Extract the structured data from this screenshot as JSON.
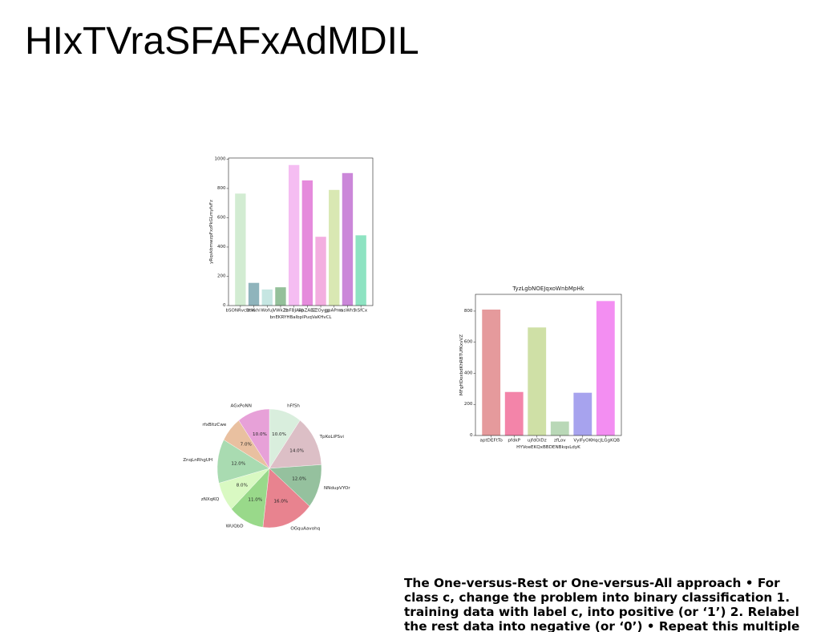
{
  "title": "HIxTVraSFAFxAdMDIL",
  "body_text": {
    "lines": [
      "The One-versus-Rest or One-versus-All approach • For",
      "class c, change the problem into binary classification 1.",
      "training data with label c, into positive (or ‘1’) 2. Relabel",
      "the rest data into negative (or ‘0’) • Repeat this multiple"
    ]
  },
  "chart_data": [
    {
      "type": "bar",
      "xlabel": "bnEKRYHBalbplPuqVaKHvCL",
      "ylabel": "yRqvkbmwzpFxzPkGLmyfvFz",
      "categories": [
        "bSONRvcBtIK",
        "zrxxhl",
        "Wofuj",
        "VWkZz",
        "zbFBJAvp",
        "RhZAEZ",
        "EZOygp",
        "gpAPms",
        "msWhS",
        "hSfCx"
      ],
      "values": [
        765,
        155,
        110,
        125,
        960,
        855,
        470,
        790,
        905,
        480
      ],
      "colors": [
        "#d2ecd2",
        "#8fb4bc",
        "#c6e6e2",
        "#94c09a",
        "#f5bdf2",
        "#e58bdc",
        "#f3aee0",
        "#d9e8b3",
        "#cb87d9",
        "#8ee3c2"
      ],
      "ylim": [
        0,
        1008
      ],
      "yticks": [
        0,
        200,
        400,
        600,
        800,
        1000
      ],
      "grid": false
    },
    {
      "type": "bar",
      "title": "TyzLgbNOEJqxoWnbMpHk",
      "xlabel": "HYVoeEKQxBBDENBkqsLdyK",
      "ylabel": "MFgHDoxbdKhRBTUfKxvVZ",
      "categories": [
        "aptDEFtTo",
        "pfdkP",
        "ujfdOiDz",
        "zfLov",
        "VyIFyOK",
        "HqcJLGgKQB"
      ],
      "values": [
        810,
        280,
        695,
        90,
        275,
        865
      ],
      "colors": [
        "#e59a9c",
        "#f384a9",
        "#cfe0a6",
        "#b9d8b7",
        "#a7a3ee",
        "#f38ef2"
      ],
      "ylim": [
        0,
        908
      ],
      "yticks": [
        0,
        200,
        400,
        600,
        800
      ],
      "grid": false
    },
    {
      "type": "pie",
      "labels": [
        "hFfSh",
        "TpKoLiPSvi",
        "NNdupVYOr",
        "OGquAavohq",
        "WUQbD",
        "zNXqKQ",
        "ZnqLnRhgUH",
        "rfxBltzCwe",
        "AGxPoNN"
      ],
      "values": [
        10,
        14,
        12,
        16,
        11,
        8,
        12,
        7,
        10
      ],
      "percent_labels": [
        "10.0%",
        "14.0%",
        "12.0%",
        "16.0%",
        "11.0%",
        "8.0%",
        "12.0%",
        "7.0%",
        "10.0%"
      ],
      "colors": [
        "#d9eedd",
        "#dcbfc6",
        "#95c19e",
        "#e8838f",
        "#99d98a",
        "#d9f9c2",
        "#a9dbb1",
        "#e9c0a0",
        "#e7a1d8"
      ]
    }
  ]
}
